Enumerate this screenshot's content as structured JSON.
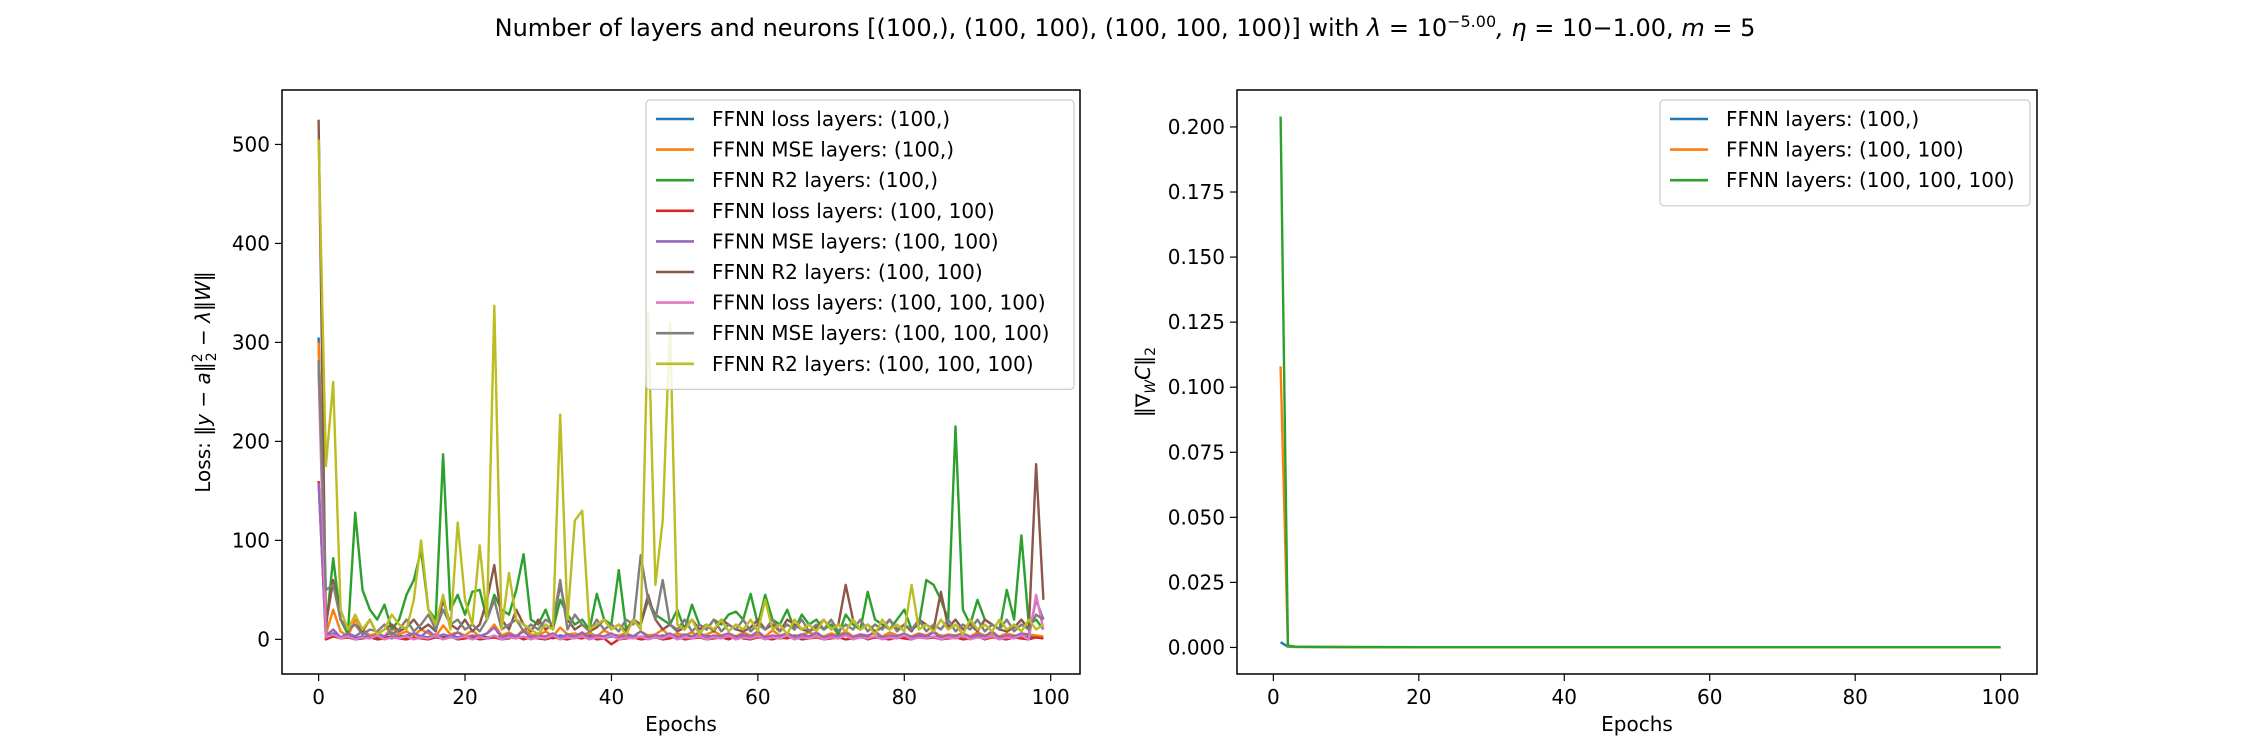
{
  "figure": {
    "suptitle": "Number of layers and neurons [(100,), (100, 100), (100, 100, 100)] with λ = 10^−5.00, η = 10−1.00, m = 5",
    "suptitle_parts": {
      "pre": "Number of layers and neurons [(100,), (100, 100), (100, 100, 100)] with ",
      "lambda": "λ",
      "eq1": " = 10",
      "exp": "−5.00",
      "eta": ", η",
      "eq2": " = 10−1.00, ",
      "m": "m",
      "eq3": " = 5"
    }
  },
  "chart_data": [
    {
      "type": "line",
      "title": "",
      "xlabel": "Epochs",
      "ylabel": "Loss: ‖y − a‖₂² − λ‖W‖",
      "ylabel_parts": {
        "pre": "Loss: ‖",
        "y": "y",
        "mid1": " − ",
        "a": "a",
        "sup": "2",
        "sub": "2",
        "mid2": " − ",
        "lam": "λ",
        "mid3": "‖",
        "W": "W",
        "post": "‖"
      },
      "xlim": [
        -5,
        104
      ],
      "ylim": [
        -35,
        555
      ],
      "xticks": [
        0,
        20,
        40,
        60,
        80,
        100
      ],
      "yticks": [
        0,
        100,
        200,
        300,
        400,
        500
      ],
      "legend_position": "upper right",
      "series": [
        {
          "name": "FFNN loss layers: (100,)",
          "color": "#1f77b4",
          "x_start": 0,
          "values": [
            305,
            3,
            6,
            2,
            4,
            1,
            3,
            2,
            2,
            3,
            1,
            4,
            2,
            6,
            3,
            2,
            5,
            2,
            4,
            2,
            3,
            1,
            4,
            2,
            3,
            2,
            2,
            4,
            1,
            3,
            2,
            3,
            1,
            4,
            2,
            3,
            2,
            4,
            2,
            1,
            3,
            2,
            4,
            2,
            3,
            1,
            2,
            4,
            2,
            3,
            1,
            3,
            2,
            4,
            2,
            2,
            3,
            1,
            3,
            2,
            4,
            2,
            3,
            1,
            2,
            4,
            2,
            3,
            2,
            1,
            3,
            2,
            4,
            2,
            3,
            1,
            2,
            3,
            2,
            4,
            1,
            3,
            2,
            3,
            2,
            4,
            1,
            2,
            3,
            2,
            3,
            1,
            4,
            2,
            3,
            2,
            1,
            3,
            2,
            2
          ]
        },
        {
          "name": "FFNN MSE layers: (100,)",
          "color": "#ff7f0e",
          "x_start": 0,
          "values": [
            300,
            5,
            30,
            8,
            3,
            20,
            10,
            4,
            6,
            3,
            12,
            5,
            8,
            4,
            10,
            6,
            3,
            14,
            5,
            7,
            4,
            9,
            3,
            6,
            15,
            4,
            7,
            3,
            10,
            5,
            4,
            8,
            3,
            12,
            5,
            6,
            4,
            7,
            3,
            9,
            5,
            4,
            6,
            3,
            8,
            4,
            5,
            10,
            3,
            6,
            4,
            7,
            3,
            5,
            8,
            4,
            6,
            3,
            7,
            4,
            5,
            3,
            9,
            4,
            6,
            3,
            5,
            7,
            4,
            3,
            6,
            4,
            8,
            3,
            5,
            4,
            6,
            3,
            7,
            4,
            5,
            3,
            6,
            4,
            8,
            3,
            5,
            4,
            6,
            3,
            7,
            4,
            5,
            3,
            6,
            4,
            3,
            5,
            4,
            3
          ]
        },
        {
          "name": "FFNN R2 layers: (100,)",
          "color": "#2ca02c",
          "x_start": 0,
          "values": [
            280,
            10,
            82,
            20,
            5,
            128,
            50,
            30,
            20,
            35,
            10,
            20,
            45,
            60,
            90,
            30,
            20,
            187,
            30,
            45,
            25,
            48,
            50,
            20,
            45,
            30,
            25,
            50,
            86,
            20,
            15,
            30,
            10,
            40,
            25,
            15,
            20,
            10,
            46,
            20,
            15,
            70,
            10,
            20,
            15,
            40,
            25,
            20,
            15,
            30,
            10,
            35,
            15,
            10,
            20,
            15,
            25,
            28,
            20,
            46,
            15,
            45,
            20,
            15,
            30,
            10,
            25,
            15,
            20,
            10,
            15,
            5,
            25,
            15,
            10,
            48,
            20,
            15,
            10,
            20,
            30,
            10,
            15,
            60,
            55,
            40,
            20,
            215,
            30,
            15,
            40,
            20,
            15,
            10,
            50,
            20,
            105,
            15,
            20,
            10
          ]
        },
        {
          "name": "FFNN loss layers: (100, 100)",
          "color": "#d62728",
          "x_start": 0,
          "values": [
            160,
            0,
            3,
            1,
            2,
            0,
            1,
            2,
            0,
            1,
            3,
            1,
            0,
            2,
            1,
            0,
            2,
            1,
            3,
            0,
            1,
            2,
            0,
            1,
            2,
            0,
            1,
            3,
            0,
            2,
            1,
            0,
            2,
            1,
            0,
            2,
            1,
            3,
            0,
            1,
            -5,
            0,
            1,
            2,
            0,
            1,
            2,
            0,
            1,
            3,
            0,
            1,
            2,
            0,
            1,
            2,
            0,
            3,
            1,
            0,
            2,
            1,
            0,
            2,
            1,
            3,
            0,
            1,
            2,
            0,
            1,
            2,
            0,
            1,
            3,
            0,
            2,
            1,
            0,
            2,
            1,
            0,
            3,
            1,
            2,
            0,
            1,
            2,
            0,
            1,
            3,
            0,
            2,
            1,
            0,
            2,
            1,
            0,
            2,
            1
          ]
        },
        {
          "name": "FFNN MSE layers: (100, 100)",
          "color": "#9467bd",
          "x_start": 0,
          "values": [
            158,
            4,
            10,
            2,
            6,
            3,
            8,
            2,
            5,
            3,
            7,
            2,
            4,
            6,
            3,
            9,
            2,
            5,
            3,
            7,
            2,
            4,
            3,
            6,
            12,
            2,
            5,
            3,
            8,
            2,
            4,
            3,
            6,
            2,
            5,
            3,
            7,
            2,
            4,
            3,
            6,
            2,
            5,
            3,
            8,
            2,
            4,
            3,
            6,
            2,
            5,
            3,
            7,
            2,
            4,
            3,
            6,
            2,
            5,
            3,
            8,
            2,
            4,
            3,
            6,
            2,
            5,
            3,
            7,
            2,
            4,
            3,
            6,
            2,
            5,
            3,
            8,
            2,
            4,
            3,
            6,
            2,
            5,
            3,
            7,
            2,
            4,
            3,
            6,
            2,
            5,
            3,
            8,
            2,
            4,
            3,
            6,
            5,
            40,
            20
          ]
        },
        {
          "name": "FFNN R2 layers: (100, 100)",
          "color": "#8c564b",
          "x_start": 0,
          "values": [
            525,
            15,
            60,
            20,
            10,
            15,
            8,
            20,
            5,
            10,
            15,
            8,
            12,
            20,
            10,
            15,
            8,
            40,
            15,
            10,
            20,
            8,
            15,
            40,
            75,
            20,
            10,
            30,
            15,
            8,
            20,
            10,
            15,
            55,
            20,
            10,
            15,
            8,
            12,
            20,
            10,
            15,
            8,
            20,
            15,
            45,
            20,
            10,
            15,
            8,
            12,
            20,
            10,
            15,
            8,
            20,
            15,
            10,
            8,
            12,
            20,
            10,
            15,
            8,
            20,
            15,
            10,
            8,
            12,
            20,
            10,
            15,
            55,
            20,
            10,
            15,
            8,
            12,
            20,
            10,
            15,
            8,
            20,
            15,
            10,
            48,
            12,
            20,
            10,
            15,
            8,
            20,
            15,
            10,
            8,
            12,
            20,
            10,
            177,
            40
          ]
        },
        {
          "name": "FFNN loss layers: (100, 100, 100)",
          "color": "#e377c2",
          "x_start": 0,
          "values": [
            270,
            2,
            5,
            1,
            3,
            0,
            2,
            1,
            4,
            0,
            2,
            1,
            3,
            0,
            2,
            1,
            4,
            0,
            2,
            1,
            3,
            0,
            2,
            1,
            4,
            0,
            2,
            1,
            3,
            0,
            2,
            1,
            4,
            0,
            2,
            1,
            3,
            0,
            2,
            1,
            4,
            0,
            2,
            1,
            3,
            0,
            2,
            1,
            4,
            0,
            2,
            1,
            3,
            0,
            2,
            1,
            4,
            0,
            2,
            1,
            3,
            0,
            2,
            1,
            4,
            0,
            2,
            1,
            3,
            0,
            2,
            1,
            4,
            0,
            2,
            1,
            3,
            0,
            2,
            1,
            4,
            0,
            2,
            1,
            3,
            0,
            2,
            1,
            4,
            0,
            2,
            1,
            3,
            0,
            2,
            1,
            4,
            0,
            45,
            10
          ]
        },
        {
          "name": "FFNN MSE layers: (100, 100, 100)",
          "color": "#7f7f7f",
          "x_start": 0,
          "values": [
            282,
            50,
            55,
            20,
            10,
            15,
            5,
            10,
            8,
            15,
            5,
            10,
            20,
            8,
            15,
            25,
            10,
            30,
            15,
            20,
            10,
            15,
            8,
            20,
            40,
            10,
            15,
            20,
            8,
            15,
            10,
            20,
            15,
            60,
            10,
            25,
            15,
            8,
            20,
            10,
            15,
            8,
            20,
            15,
            85,
            40,
            20,
            60,
            15,
            10,
            20,
            8,
            15,
            10,
            20,
            8,
            15,
            10,
            20,
            8,
            15,
            10,
            20,
            8,
            15,
            10,
            20,
            8,
            15,
            10,
            20,
            8,
            15,
            10,
            20,
            8,
            15,
            10,
            20,
            8,
            15,
            10,
            20,
            8,
            15,
            10,
            20,
            8,
            15,
            10,
            20,
            8,
            15,
            10,
            20,
            8,
            15,
            10,
            25,
            20
          ]
        },
        {
          "name": "FFNN R2 layers: (100, 100, 100)",
          "color": "#bcbd22",
          "x_start": 0,
          "values": [
            505,
            175,
            260,
            30,
            10,
            25,
            10,
            20,
            5,
            10,
            25,
            15,
            10,
            40,
            100,
            30,
            15,
            45,
            10,
            118,
            40,
            15,
            95,
            20,
            337,
            10,
            67,
            20,
            15,
            10,
            5,
            15,
            10,
            227,
            20,
            120,
            130,
            10,
            15,
            20,
            10,
            15,
            5,
            20,
            10,
            330,
            55,
            120,
            320,
            15,
            10,
            20,
            5,
            15,
            10,
            20,
            8,
            15,
            10,
            20,
            8,
            40,
            10,
            15,
            5,
            20,
            10,
            15,
            8,
            20,
            10,
            15,
            8,
            20,
            10,
            15,
            5,
            20,
            10,
            15,
            8,
            55,
            10,
            15,
            8,
            20,
            10,
            15,
            5,
            20,
            10,
            15,
            8,
            20,
            10,
            15,
            8,
            20,
            10,
            15
          ]
        }
      ]
    },
    {
      "type": "line",
      "title": "",
      "xlabel": "Epochs",
      "ylabel": "‖∇WC‖₂",
      "ylabel_parts": {
        "pre": "‖∇",
        "W": "W",
        "C": "C",
        "post": "‖",
        "sub": "2"
      },
      "xlim": [
        -5,
        105
      ],
      "ylim": [
        -0.0102,
        0.2142
      ],
      "xticks": [
        0,
        20,
        40,
        60,
        80,
        100
      ],
      "yticks": [
        "0.000",
        "0.025",
        "0.050",
        "0.075",
        "0.100",
        "0.125",
        "0.150",
        "0.175",
        "0.200"
      ],
      "legend_position": "upper right",
      "series": [
        {
          "name": "FFNN layers: (100,)",
          "color": "#1f77b4",
          "x": [
            1,
            2,
            3,
            5,
            10,
            20,
            40,
            60,
            80,
            100
          ],
          "values": [
            0.002,
            0.0003,
            0.0002,
            0.0002,
            0.0001,
            0.0001,
            0.0001,
            0.0001,
            0.0001,
            0.0001
          ]
        },
        {
          "name": "FFNN layers: (100, 100)",
          "color": "#ff7f0e",
          "x": [
            1,
            2,
            3,
            5,
            10,
            20,
            40,
            60,
            80,
            100
          ],
          "values": [
            0.108,
            0.0005,
            0.0002,
            0.0002,
            0.0001,
            0.0001,
            0.0001,
            0.0001,
            0.0001,
            0.0001
          ]
        },
        {
          "name": "FFNN layers: (100, 100, 100)",
          "color": "#2ca02c",
          "x": [
            1,
            2,
            3,
            5,
            10,
            20,
            40,
            60,
            80,
            100
          ],
          "values": [
            0.204,
            0.0008,
            0.0003,
            0.0002,
            0.0002,
            0.0001,
            0.0001,
            0.0001,
            0.0001,
            0.0001
          ]
        }
      ]
    }
  ]
}
